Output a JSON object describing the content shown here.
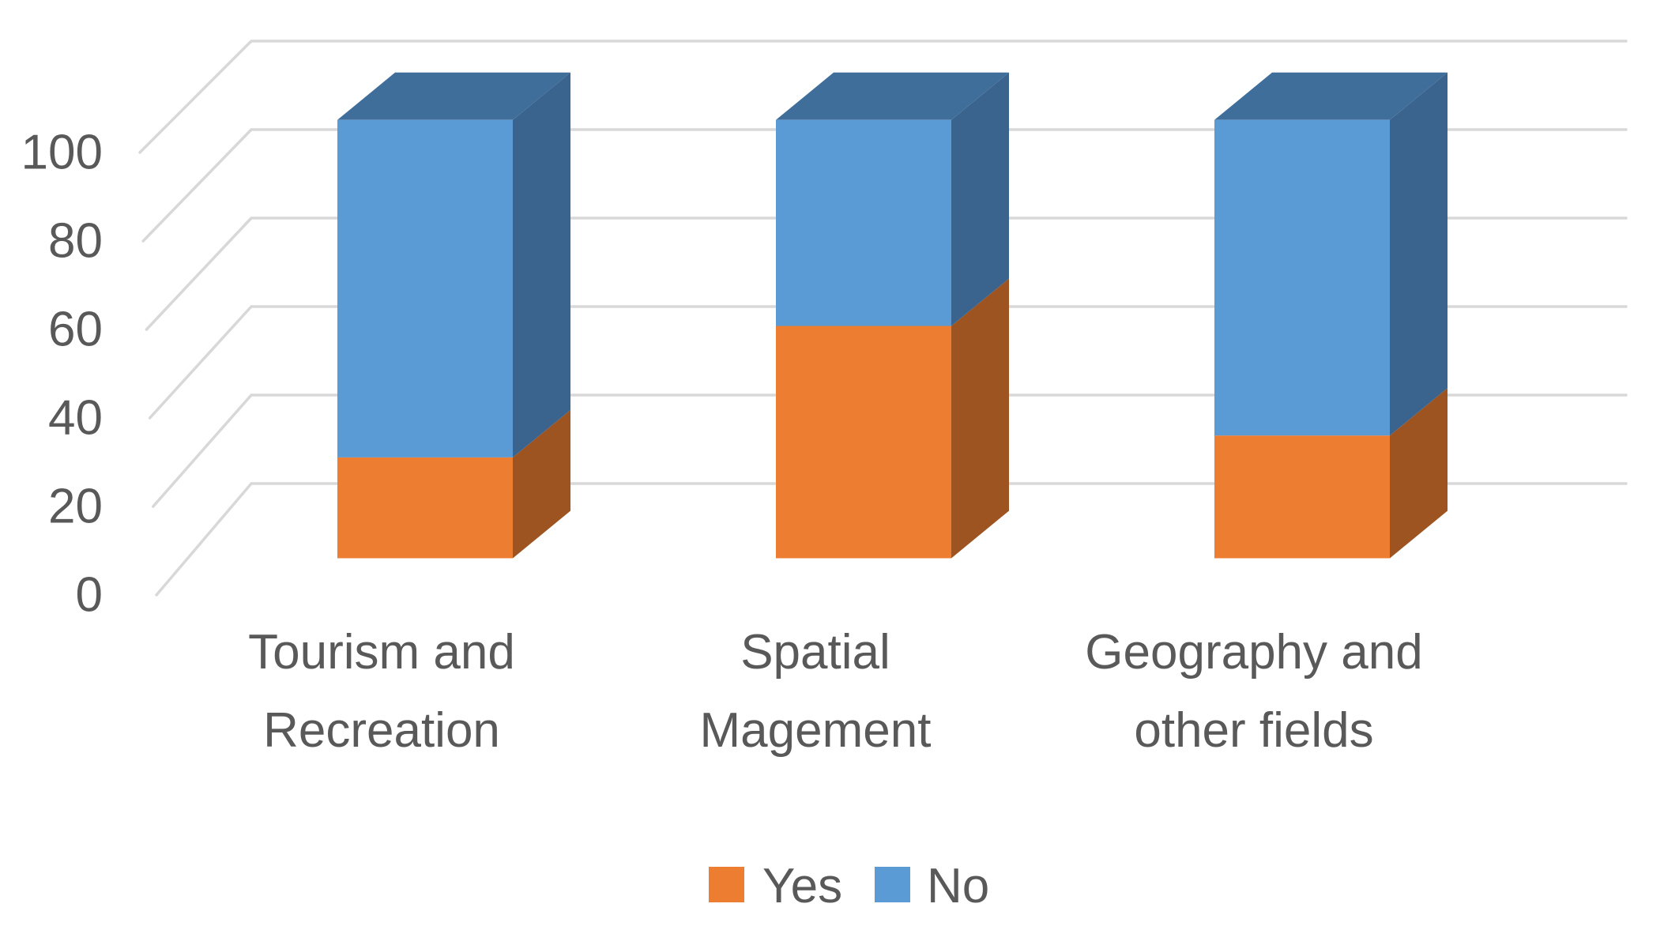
{
  "chart_data": {
    "type": "bar",
    "subtype": "stacked-column-3d",
    "title": "",
    "xlabel": "",
    "ylabel": "",
    "categories": [
      "Tourism and Recreation",
      "Spatial Magement",
      "Geography and other fields"
    ],
    "category_lines": [
      [
        "Tourism and",
        "Recreation"
      ],
      [
        "Spatial",
        "Magement"
      ],
      [
        "Geography and",
        "other fields"
      ]
    ],
    "series": [
      {
        "name": "Yes",
        "values": [
          23,
          53,
          28
        ],
        "color": "#ED7D31",
        "side_color": "#9D5420",
        "top_color": "#B8621F"
      },
      {
        "name": "No",
        "values": [
          77,
          47,
          72
        ],
        "color": "#5B9BD5",
        "side_color": "#3A648E",
        "top_color": "#406E9B"
      }
    ],
    "totals": [
      100,
      100,
      100
    ],
    "yticks": [
      0,
      20,
      40,
      60,
      80,
      100
    ],
    "ylim": [
      0,
      100
    ],
    "grid": true,
    "legend_position": "bottom"
  },
  "legend": {
    "items": [
      {
        "label": "Yes",
        "color": "#ED7D31"
      },
      {
        "label": "No",
        "color": "#5B9BD5"
      }
    ]
  },
  "colors": {
    "background": "#FFFFFF",
    "text": "#595959",
    "gridline": "#D8D8D8"
  }
}
